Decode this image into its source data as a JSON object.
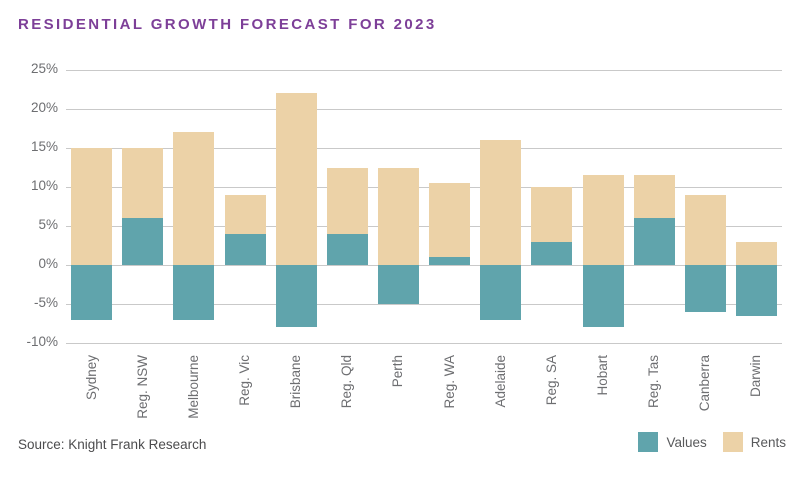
{
  "title": "RESIDENTIAL GROWTH FORECAST FOR 2023",
  "source": "Source: Knight Frank Research",
  "colors": {
    "title": "#7d3f98",
    "values_series": "#60a4ac",
    "rents_series": "#ecd2a7",
    "gridline": "#c9c9c9",
    "axis_text": "#6d6e71",
    "source_text": "#4c4c4e"
  },
  "legend": [
    {
      "label": "Values",
      "color": "#60a4ac"
    },
    {
      "label": "Rents",
      "color": "#ecd2a7"
    }
  ],
  "chart_data": {
    "type": "bar",
    "stacked": true,
    "title": "RESIDENTIAL GROWTH FORECAST FOR 2023",
    "xlabel": "",
    "ylabel": "",
    "ylim": [
      -10,
      25
    ],
    "ytick_step": 5,
    "ytick_suffix": "%",
    "grid": true,
    "legend_position": "bottom-right",
    "categories": [
      "Sydney",
      "Reg. NSW",
      "Melbourne",
      "Reg. Vic",
      "Brisbane",
      "Reg. Qld",
      "Perth",
      "Reg. WA",
      "Adelaide",
      "Reg. SA",
      "Hobart",
      "Reg. Tas",
      "Canberra",
      "Darwin"
    ],
    "series": [
      {
        "name": "Values",
        "values": [
          -7,
          6,
          -7,
          4,
          -8,
          4,
          -5,
          1,
          -7,
          3,
          -8,
          6,
          -6,
          -6.5
        ]
      },
      {
        "name": "Rents",
        "values": [
          15,
          9,
          17,
          5,
          22,
          8.5,
          12.5,
          9.5,
          16,
          7,
          11.5,
          5.5,
          9,
          3
        ]
      }
    ],
    "yticks": [
      {
        "value": 25,
        "label": "25%"
      },
      {
        "value": 20,
        "label": "20%"
      },
      {
        "value": 15,
        "label": "15%"
      },
      {
        "value": 10,
        "label": "10%"
      },
      {
        "value": 5,
        "label": "5%"
      },
      {
        "value": 0,
        "label": "0%"
      },
      {
        "value": -5,
        "label": "-5%"
      },
      {
        "value": -10,
        "label": "-10%"
      }
    ]
  }
}
